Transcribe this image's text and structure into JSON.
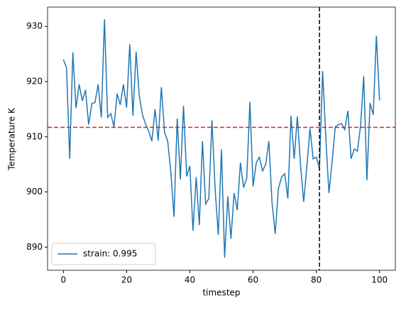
{
  "chart_data": {
    "type": "line",
    "xlabel": "timestep",
    "ylabel": "Temperature K",
    "x": [
      0,
      1,
      2,
      3,
      4,
      5,
      6,
      7,
      8,
      9,
      10,
      11,
      12,
      13,
      14,
      15,
      16,
      17,
      18,
      19,
      20,
      21,
      22,
      23,
      24,
      25,
      26,
      27,
      28,
      29,
      30,
      31,
      32,
      33,
      34,
      35,
      36,
      37,
      38,
      39,
      40,
      41,
      42,
      43,
      44,
      45,
      46,
      47,
      48,
      49,
      50,
      51,
      52,
      53,
      54,
      55,
      56,
      57,
      58,
      59,
      60,
      61,
      62,
      63,
      64,
      65,
      66,
      67,
      68,
      69,
      70,
      71,
      72,
      73,
      74,
      75,
      76,
      77,
      78,
      79,
      80,
      81,
      82,
      83,
      84,
      85,
      86,
      87,
      88,
      89,
      90,
      91,
      92,
      93,
      94,
      95,
      96,
      97,
      98,
      99,
      100
    ],
    "series": [
      {
        "name": "strain: 0.995",
        "color": "#1f77b4",
        "values": [
          924,
          922.5,
          906,
          925.3,
          915.2,
          919.5,
          916.5,
          918.5,
          912.2,
          916,
          916.2,
          919.5,
          913.5,
          931.3,
          913.5,
          914.2,
          911.8,
          917.8,
          915.8,
          919.5,
          915.3,
          926.8,
          913.8,
          925.4,
          917.5,
          914,
          912.3,
          911,
          909.2,
          915,
          909.3,
          919,
          910.8,
          909.2,
          903.5,
          895.5,
          913.3,
          902.3,
          915.6,
          902.8,
          904.7,
          893,
          902.7,
          894,
          909.2,
          897.8,
          898.8,
          913,
          900.5,
          892.2,
          907.7,
          888.1,
          899.2,
          891.5,
          899.8,
          896.7,
          905.3,
          900.8,
          902.5,
          916.3,
          901,
          905.3,
          906.3,
          903.8,
          905,
          909.2,
          898,
          892.4,
          900.5,
          902.7,
          903.3,
          898.8,
          913.8,
          906,
          913.7,
          905,
          898.2,
          904.5,
          911.5,
          906,
          906.3,
          904.2,
          921.9,
          909.8,
          899.8,
          905.5,
          911.8,
          912.2,
          912.4,
          911.3,
          914.7,
          906,
          907.8,
          907.4,
          912,
          921,
          902.1,
          916.1,
          914,
          928.3,
          916.6
        ]
      }
    ],
    "hline": {
      "value": 911.7,
      "color": "#d62728"
    },
    "vline": {
      "value": 81,
      "color": "#000000"
    },
    "xlim": [
      -5,
      105
    ],
    "ylim": [
      885.8,
      933.5
    ],
    "xticks": [
      0,
      20,
      40,
      60,
      80,
      100
    ],
    "yticks": [
      890,
      900,
      910,
      920,
      930
    ],
    "legend": "lower-left"
  }
}
